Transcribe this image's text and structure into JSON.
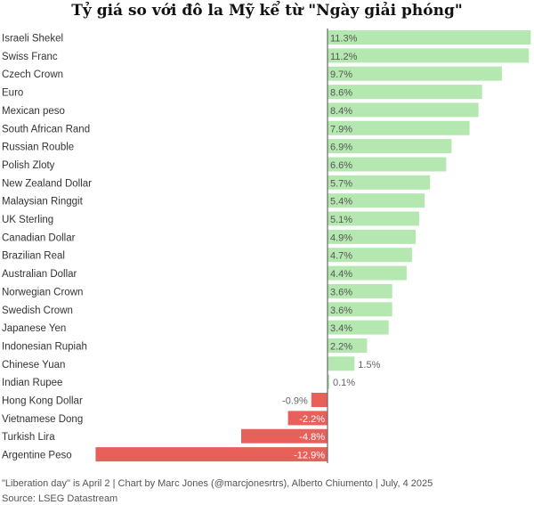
{
  "chart_data": {
    "type": "bar",
    "orientation": "horizontal",
    "title": "Tỷ giá so với đô la Mỹ kể từ \"Ngày giải phóng\"",
    "categories": [
      "Israeli Shekel",
      "Swiss Franc",
      "Czech Crown",
      "Euro",
      "Mexican peso",
      "South African Rand",
      "Russian Rouble",
      "Polish Zloty",
      "New Zealand Dollar",
      "Malaysian Ringgit",
      "UK Sterling",
      "Canadian Dollar",
      "Brazilian Real",
      "Australian Dollar",
      "Norwegian Crown",
      "Swedish Crown",
      "Japanese Yen",
      "Indonesian Rupiah",
      "Chinese Yuan",
      "Indian Rupee",
      "Hong Kong Dollar",
      "Vietnamese Dong",
      "Turkish Lira",
      "Argentine Peso"
    ],
    "values": [
      11.3,
      11.2,
      9.7,
      8.6,
      8.4,
      7.9,
      6.9,
      6.6,
      5.7,
      5.4,
      5.1,
      4.9,
      4.7,
      4.4,
      3.6,
      3.6,
      3.4,
      2.2,
      1.5,
      0.1,
      -0.9,
      -2.2,
      -4.8,
      -12.9
    ],
    "value_labels": [
      "11.3%",
      "11.2%",
      "9.7%",
      "8.6%",
      "8.4%",
      "7.9%",
      "6.9%",
      "6.6%",
      "5.7%",
      "5.4%",
      "5.1%",
      "4.9%",
      "4.7%",
      "4.4%",
      "3.6%",
      "3.6%",
      "3.4%",
      "2.2%",
      "1.5%",
      "0.1%",
      "-0.9%",
      "-2.2%",
      "-4.8%",
      "-12.9%"
    ],
    "unit": "%",
    "xlim": [
      -13.9,
      11.9
    ],
    "grid": false,
    "legend": "none",
    "colors": {
      "positive": "#b5e8b0",
      "negative": "#e8605a",
      "axis": "#666666",
      "label_inside": "#555555",
      "label_outside": "#666666"
    }
  },
  "footer": {
    "note": "\"Liberation day\" is April 2 | Chart by Marc Jones (@marcjonesrtrs), Alberto Chiumento | July, 4 2025",
    "source": "Source: LSEG Datastream"
  }
}
